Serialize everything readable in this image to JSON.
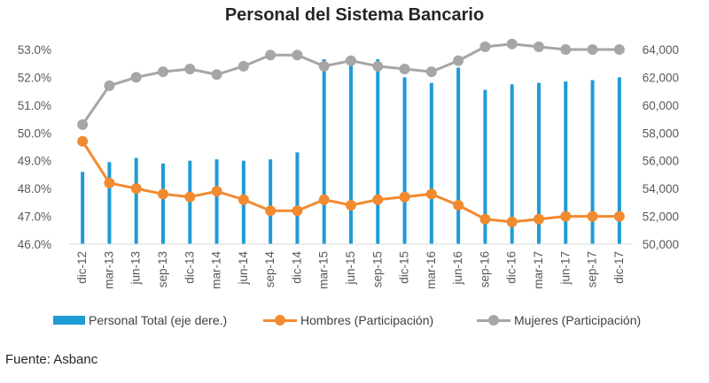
{
  "title": "Personal del Sistema Bancario",
  "source": "Fuente: Asbanc",
  "legend": {
    "bar": "Personal Total (eje dere.)",
    "hombres": "Hombres (Participación)",
    "mujeres": "Mujeres (Participación)"
  },
  "colors": {
    "bar": "#1f9bd6",
    "hombres": "#f28a30",
    "mujeres": "#a6a6a6"
  },
  "chart_data": {
    "type": "bar",
    "categories": [
      "dic-12",
      "mar-13",
      "jun-13",
      "sep-13",
      "dic-13",
      "mar-14",
      "jun-14",
      "sep-14",
      "dic-14",
      "mar-15",
      "jun-15",
      "sep-15",
      "dic-15",
      "mar-16",
      "jun-16",
      "sep-16",
      "dic-16",
      "mar-17",
      "jun-17",
      "sep-17",
      "dic-17"
    ],
    "series": [
      {
        "name": "Personal Total (eje dere.)",
        "type": "bar",
        "axis": "right",
        "values": [
          55200,
          55900,
          56200,
          55800,
          56000,
          56100,
          56000,
          56100,
          56600,
          63300,
          63500,
          63300,
          62000,
          61600,
          62700,
          61100,
          61500,
          61600,
          61700,
          61800,
          62000
        ]
      },
      {
        "name": "Hombres (Participación)",
        "type": "line",
        "axis": "left",
        "values": [
          49.7,
          48.2,
          48.0,
          47.8,
          47.7,
          47.9,
          47.6,
          47.2,
          47.2,
          47.6,
          47.4,
          47.6,
          47.7,
          47.8,
          47.4,
          46.9,
          46.8,
          46.9,
          47.0,
          47.0,
          47.0
        ]
      },
      {
        "name": "Mujeres (Participación)",
        "type": "line",
        "axis": "left",
        "values": [
          50.3,
          51.7,
          52.0,
          52.2,
          52.3,
          52.1,
          52.4,
          52.8,
          52.8,
          52.4,
          52.6,
          52.4,
          52.3,
          52.2,
          52.6,
          53.1,
          53.2,
          53.1,
          53.0,
          53.0,
          53.0
        ]
      }
    ],
    "y_left": {
      "min": 46.0,
      "max": 53.0,
      "step": 1.0,
      "ticks": [
        "46.0%",
        "47.0%",
        "48.0%",
        "49.0%",
        "50.0%",
        "51.0%",
        "52.0%",
        "53.0%"
      ]
    },
    "y_right": {
      "min": 50000,
      "max": 64000,
      "step": 2000,
      "ticks": [
        "50,000",
        "52,000",
        "54,000",
        "56,000",
        "58,000",
        "60,000",
        "62,000",
        "64,000"
      ]
    },
    "grid": false,
    "legend_position": "bottom"
  }
}
